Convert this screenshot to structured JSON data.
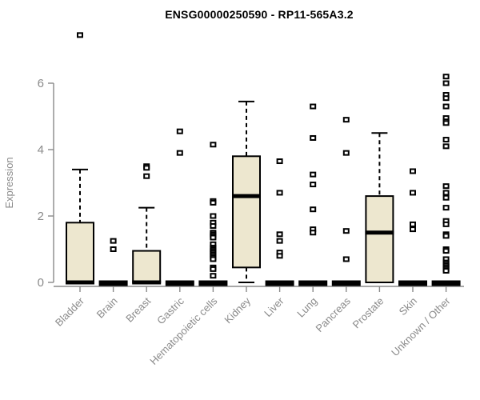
{
  "chart_data": {
    "type": "boxplot",
    "title": "ENSG00000250590 - RP11-565A3.2",
    "ylabel": "Expression",
    "xlabel": "",
    "ylim": [
      0,
      6
    ],
    "yticks": [
      0,
      2,
      4,
      6
    ],
    "grid": false,
    "legend_position": "none",
    "colors": {
      "box_fill": "#EDE7CF",
      "box_border": "#000000",
      "median": "#000000",
      "whisker": "#000000",
      "outlier_border": "#000000",
      "outlier_fill": "#ffffff",
      "axis": "#8a8a8a",
      "tick_label": "#8a8a8a",
      "title": "#000000",
      "background": "#ffffff"
    },
    "categories": [
      "Bladder",
      "Brain",
      "Breast",
      "Gastric",
      "Hematopoietic cells",
      "Kidney",
      "Liver",
      "Lung",
      "Pancreas",
      "Prostate",
      "Skin",
      "Unknown / Other"
    ],
    "series": [
      {
        "name": "Bladder",
        "q1": 0,
        "median": 0,
        "q3": 1.8,
        "whisker_low": 0,
        "whisker_high": 3.4,
        "outliers": [
          7.45
        ]
      },
      {
        "name": "Brain",
        "q1": 0,
        "median": 0,
        "q3": 0,
        "whisker_low": 0,
        "whisker_high": 0,
        "outliers": [
          1.25,
          1.0
        ]
      },
      {
        "name": "Breast",
        "q1": 0,
        "median": 0,
        "q3": 0.95,
        "whisker_low": 0,
        "whisker_high": 2.25,
        "outliers": [
          3.5,
          3.45,
          3.2
        ]
      },
      {
        "name": "Gastric",
        "q1": 0,
        "median": 0,
        "q3": 0,
        "whisker_low": 0,
        "whisker_high": 0,
        "outliers": [
          4.55,
          3.9
        ]
      },
      {
        "name": "Hematopoietic cells",
        "q1": 0,
        "median": 0,
        "q3": 0,
        "whisker_low": 0,
        "whisker_high": 0,
        "outliers": [
          4.15,
          2.45,
          2.4,
          2.0,
          1.8,
          1.7,
          1.5,
          1.45,
          1.4,
          1.35,
          1.15,
          1.05,
          1.0,
          0.95,
          0.9,
          0.85,
          0.8,
          0.75,
          0.7,
          0.45,
          0.4,
          0.2
        ]
      },
      {
        "name": "Kidney",
        "q1": 0.45,
        "median": 2.6,
        "q3": 3.8,
        "whisker_low": 0,
        "whisker_high": 5.45,
        "outliers": []
      },
      {
        "name": "Liver",
        "q1": 0,
        "median": 0,
        "q3": 0,
        "whisker_low": 0,
        "whisker_high": 0,
        "outliers": [
          3.65,
          2.7,
          1.45,
          1.25,
          0.9,
          0.8
        ]
      },
      {
        "name": "Lung",
        "q1": 0,
        "median": 0,
        "q3": 0,
        "whisker_low": 0,
        "whisker_high": 0,
        "outliers": [
          5.3,
          4.35,
          3.25,
          2.95,
          2.2,
          1.6,
          1.5
        ]
      },
      {
        "name": "Pancreas",
        "q1": 0,
        "median": 0,
        "q3": 0,
        "whisker_low": 0,
        "whisker_high": 0,
        "outliers": [
          4.9,
          3.9,
          1.55,
          0.7
        ]
      },
      {
        "name": "Prostate",
        "q1": 0,
        "median": 1.5,
        "q3": 2.6,
        "whisker_low": 0,
        "whisker_high": 4.5,
        "outliers": []
      },
      {
        "name": "Skin",
        "q1": 0,
        "median": 0,
        "q3": 0,
        "whisker_low": 0,
        "whisker_high": 0,
        "outliers": [
          3.35,
          2.7,
          1.75,
          1.6
        ]
      },
      {
        "name": "Unknown / Other",
        "q1": 0,
        "median": 0,
        "q3": 0,
        "whisker_low": 0,
        "whisker_high": 0,
        "outliers": [
          6.2,
          6.0,
          5.65,
          5.55,
          5.3,
          4.95,
          4.85,
          4.8,
          4.3,
          4.1,
          2.9,
          2.7,
          2.55,
          2.25,
          1.85,
          1.75,
          1.45,
          1.4,
          1.0,
          0.95,
          0.7,
          0.6,
          0.55,
          0.5,
          0.45,
          0.4,
          0.35
        ]
      }
    ]
  }
}
